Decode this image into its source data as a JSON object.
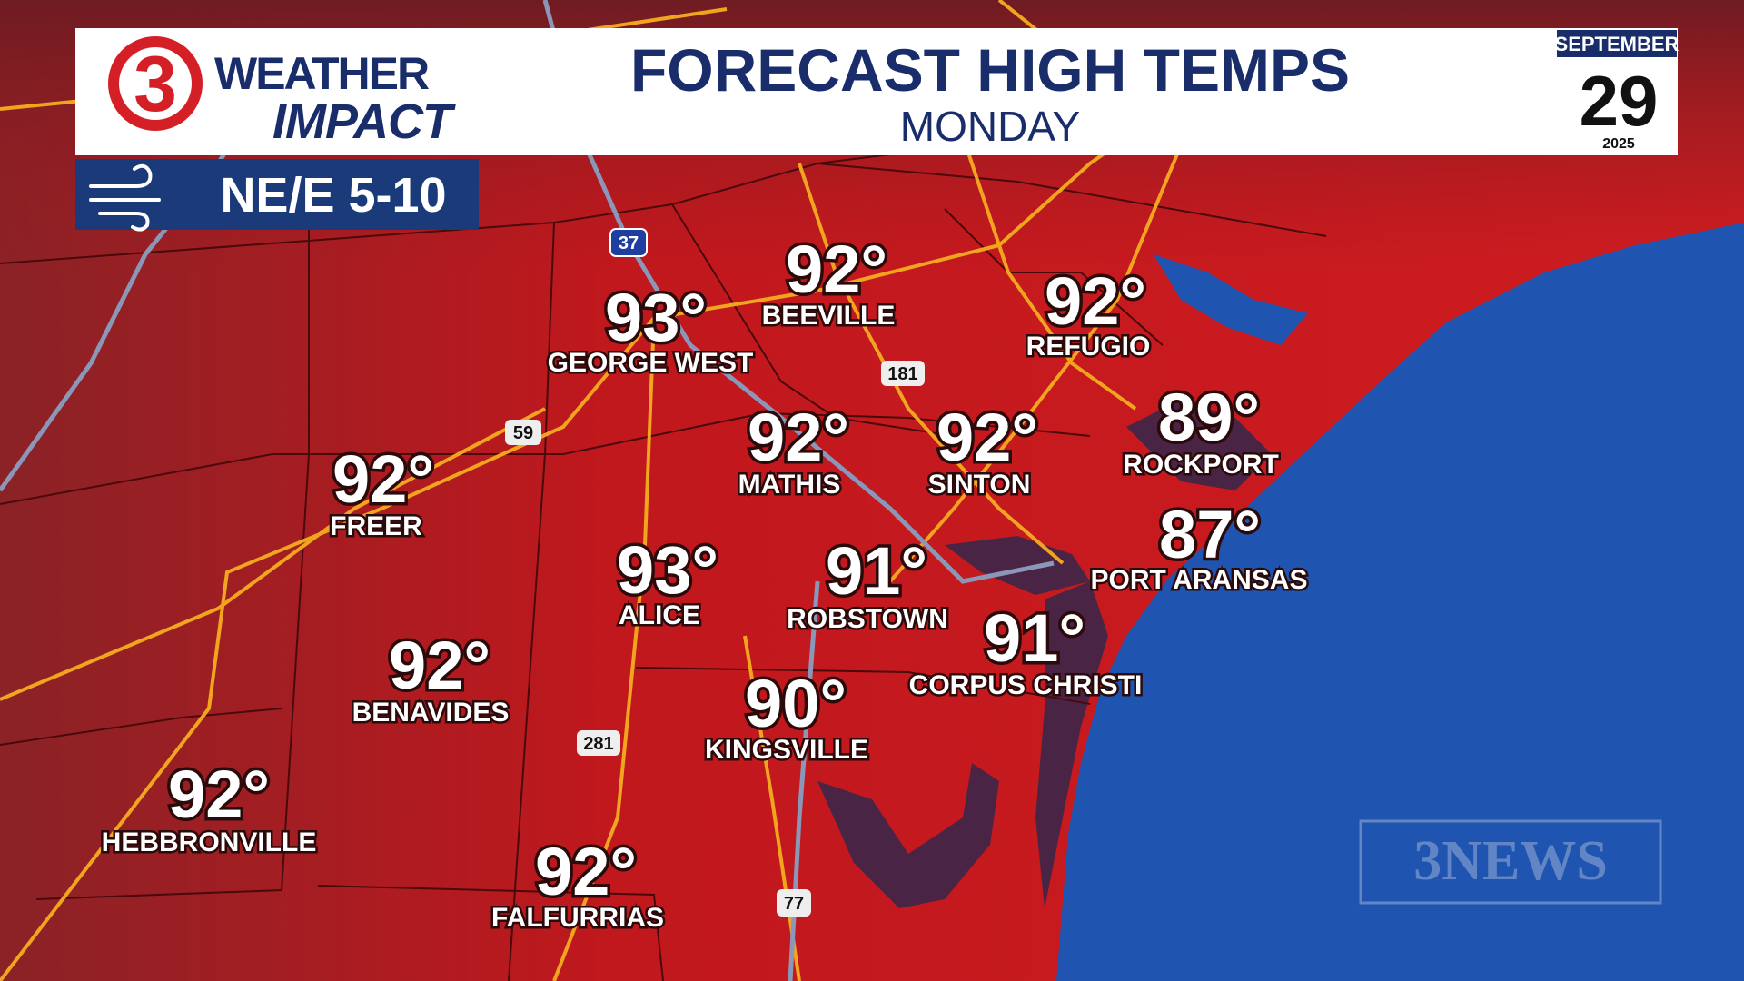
{
  "header": {
    "logo_number": "3",
    "logo_line1": "WEATHER",
    "logo_line2": "IMPACT",
    "title": "FORECAST HIGH TEMPS",
    "subtitle": "MONDAY"
  },
  "date": {
    "month": "SEPTEMBER",
    "day": "29",
    "year": "2025"
  },
  "wind": "NE/E 5-10",
  "cities": [
    {
      "name": "GEORGE WEST",
      "temp": "93°"
    },
    {
      "name": "BEEVILLE",
      "temp": "92°"
    },
    {
      "name": "REFUGIO",
      "temp": "92°"
    },
    {
      "name": "FREER",
      "temp": "92°"
    },
    {
      "name": "MATHIS",
      "temp": "92°"
    },
    {
      "name": "SINTON",
      "temp": "92°"
    },
    {
      "name": "ROCKPORT",
      "temp": "89°"
    },
    {
      "name": "PORT ARANSAS",
      "temp": "87°"
    },
    {
      "name": "ALICE",
      "temp": "93°"
    },
    {
      "name": "ROBSTOWN",
      "temp": "91°"
    },
    {
      "name": "CORPUS CHRISTI",
      "temp": "91°"
    },
    {
      "name": "BENAVIDES",
      "temp": "92°"
    },
    {
      "name": "KINGSVILLE",
      "temp": "90°"
    },
    {
      "name": "HEBBRONVILLE",
      "temp": "92°"
    },
    {
      "name": "FALFURRIAS",
      "temp": "92°"
    }
  ],
  "highways": [
    "37",
    "181",
    "59",
    "281",
    "77"
  ],
  "watermark": "3NEWS"
}
